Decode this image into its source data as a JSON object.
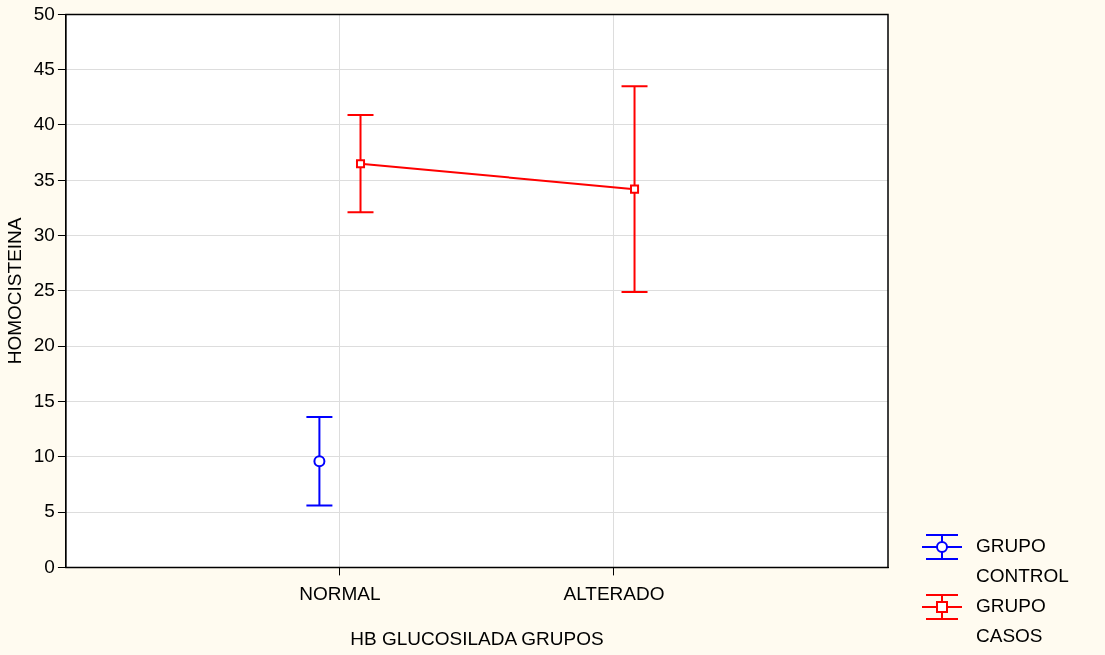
{
  "chart_data": {
    "type": "line",
    "xlabel": "HB GLUCOSILADA GRUPOS",
    "ylabel": "HOMOCISTEINA",
    "categories": [
      "NORMAL",
      "ALTERADO"
    ],
    "series": [
      {
        "name": "GRUPO CONTROL",
        "color": "#0000ff",
        "marker": "circle",
        "values": [
          9.6,
          null
        ],
        "errors": [
          4.0,
          null
        ]
      },
      {
        "name": "GRUPO CASOS",
        "color": "#ff0000",
        "marker": "square",
        "values": [
          36.5,
          34.2
        ],
        "errors": [
          4.4,
          9.3
        ]
      }
    ],
    "ylim": [
      0,
      50
    ],
    "yticks": [
      0,
      5,
      10,
      15,
      20,
      25,
      30,
      35,
      40,
      45,
      50
    ],
    "grid": true,
    "legend": "bottom right"
  }
}
